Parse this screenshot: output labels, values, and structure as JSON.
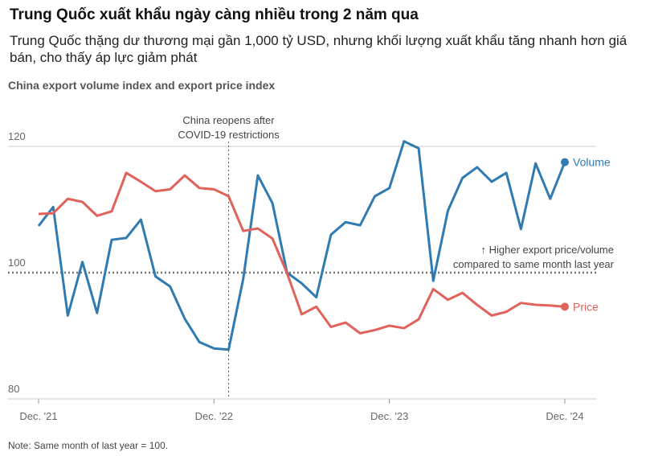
{
  "header": {
    "title": "Trung Quốc xuất khẩu ngày càng nhiều trong 2 năm qua",
    "subtitle": "Trung Quốc thặng dư thương mại gần 1,000 tỷ USD, nhưng khối lượng xuất khẩu tăng nhanh hơn giá bán, cho thấy áp lực giảm phát"
  },
  "chart_data": {
    "type": "line",
    "title": "China export volume index and export price index",
    "categories": [
      "Dec. '21",
      null,
      null,
      null,
      null,
      null,
      null,
      null,
      null,
      null,
      null,
      null,
      "Dec. '22",
      null,
      null,
      null,
      null,
      null,
      null,
      null,
      null,
      null,
      null,
      null,
      "Dec. '23",
      null,
      null,
      null,
      null,
      null,
      null,
      null,
      null,
      null,
      null,
      null,
      "Dec. '24"
    ],
    "series": [
      {
        "name": "Volume",
        "color": "#2f7bb1",
        "values": [
          107.4,
          110.4,
          93.2,
          101.7,
          93.6,
          105.2,
          105.5,
          108.4,
          99.4,
          97.8,
          92.7,
          89.0,
          88.0,
          87.8,
          99.0,
          115.4,
          111.0,
          100.0,
          98.3,
          96.1,
          106.0,
          108.0,
          107.5,
          112.1,
          113.4,
          120.8,
          119.7,
          98.7,
          109.8,
          115.0,
          116.7,
          114.4,
          115.8,
          106.9,
          117.3,
          111.7,
          117.5
        ]
      },
      {
        "name": "Price",
        "color": "#e0625a",
        "values": [
          109.3,
          109.4,
          111.7,
          111.2,
          109.0,
          109.7,
          115.8,
          114.4,
          112.9,
          113.2,
          115.4,
          113.4,
          113.2,
          112.1,
          106.6,
          107.0,
          105.4,
          99.9,
          93.4,
          94.6,
          91.4,
          92.1,
          90.4,
          90.9,
          91.6,
          91.2,
          92.6,
          97.4,
          95.7,
          96.8,
          94.9,
          93.2,
          93.8,
          95.2,
          94.9,
          94.8,
          94.6
        ]
      }
    ],
    "ylim": [
      80,
      120
    ],
    "yticks": [
      80,
      100,
      120
    ],
    "grid": true,
    "reference_line": 100,
    "annotations": [
      [
        "China reopens after",
        "COVID-19 restrictions"
      ],
      [
        "↑ Higher export price/volume",
        "compared to same month last year"
      ]
    ],
    "note": "Note: Same month of last year = 100."
  }
}
